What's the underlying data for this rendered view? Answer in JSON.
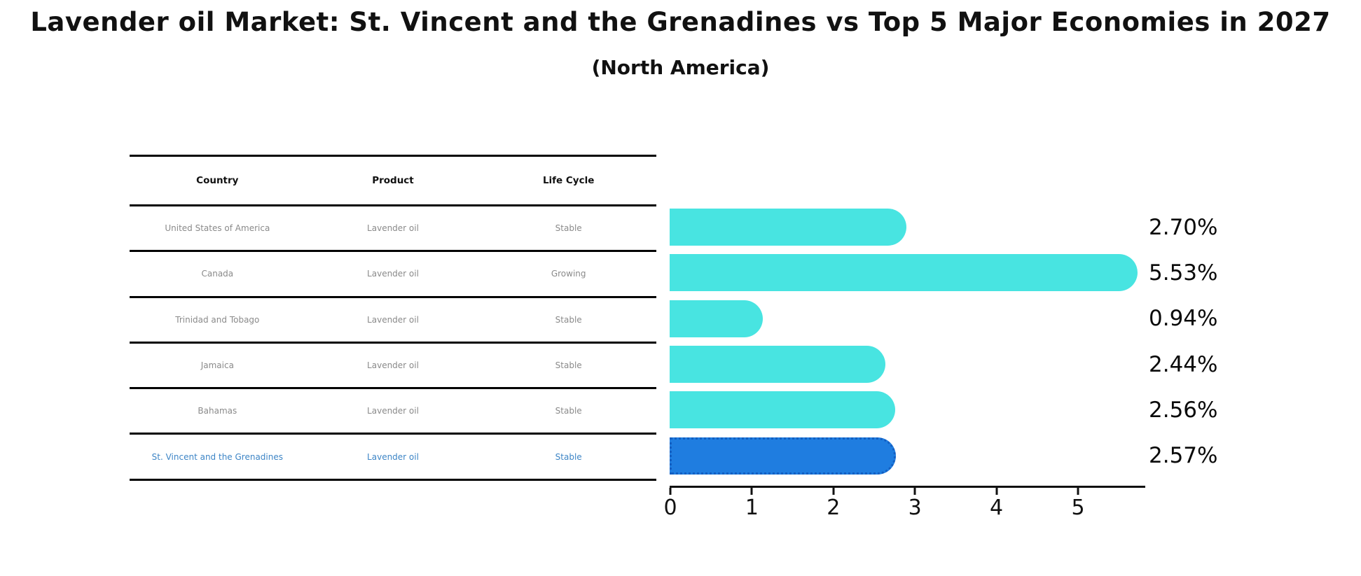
{
  "title": "Lavender oil Market: St. Vincent and the Grenadines vs Top 5 Major Economies in 2027",
  "subtitle": "(North America)",
  "table": {
    "headers": [
      "Country",
      "Product",
      "Life Cycle"
    ],
    "rows": [
      {
        "country": "United States of America",
        "product": "Lavender oil",
        "life_cycle": "Stable",
        "highlighted": false
      },
      {
        "country": "Canada",
        "product": "Lavender oil",
        "life_cycle": "Growing",
        "highlighted": false
      },
      {
        "country": "Trinidad and Tobago",
        "product": "Lavender oil",
        "life_cycle": "Stable",
        "highlighted": false
      },
      {
        "country": "Jamaica",
        "product": "Lavender oil",
        "life_cycle": "Stable",
        "highlighted": false
      },
      {
        "country": "Bahamas",
        "product": "Lavender oil",
        "life_cycle": "Stable",
        "highlighted": false
      },
      {
        "country": "St. Vincent and the Grenadines",
        "product": "Lavender oil",
        "life_cycle": "Stable",
        "highlighted": true
      }
    ]
  },
  "chart_data": {
    "type": "bar",
    "orientation": "horizontal",
    "title": "Lavender oil Market: St. Vincent and the Grenadines vs Top 5 Major Economies in 2027 (North America)",
    "categories": [
      "United States of America",
      "Canada",
      "Trinidad and Tobago",
      "Jamaica",
      "Bahamas",
      "St. Vincent and the Grenadines"
    ],
    "values": [
      2.7,
      5.53,
      0.94,
      2.44,
      2.56,
      2.57
    ],
    "value_labels": [
      "2.70%",
      "5.53%",
      "0.94%",
      "2.44%",
      "2.56%",
      "2.57%"
    ],
    "xlabel": "",
    "ylabel": "",
    "xticks": [
      0,
      1,
      2,
      3,
      4,
      5
    ],
    "xlim": [
      0,
      5.81
    ],
    "grid": false,
    "legend": null,
    "highlight_index": 5,
    "highlight_style": "dotted-border"
  },
  "colors": {
    "bar_color": "#48e4e1",
    "highlight_bar_color": "#1f7de0",
    "highlight_border_color": "#135fc2",
    "highlight_text_color": "#3d85c6",
    "table_text_color": "#8a8a8a",
    "axis_color": "#111111"
  }
}
